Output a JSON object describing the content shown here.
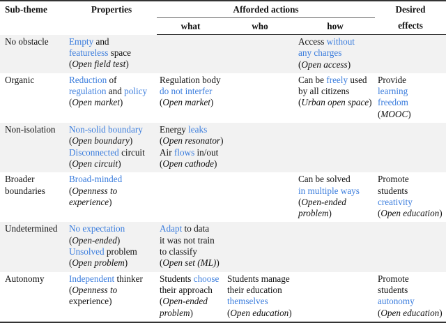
{
  "header": {
    "subtheme": "Sub-theme",
    "properties": "Properties",
    "afforded": "Afforded actions",
    "what": "what",
    "who": "who",
    "how": "how",
    "desired_1": "Desired",
    "desired_2": "effects"
  },
  "colors": {
    "highlight": "#3b7ddd",
    "stripe": "#f2f2f2"
  },
  "rows": [
    {
      "cells": [
        [
          [
            [
              "n",
              "No obstacle"
            ]
          ]
        ],
        [
          [
            [
              "b",
              "Empty"
            ],
            [
              "n",
              " and"
            ]
          ],
          [
            [
              "b",
              "featureless"
            ],
            [
              "n",
              " space"
            ]
          ],
          [
            [
              "n",
              "("
            ],
            [
              "i",
              "Open field test"
            ],
            [
              "n",
              ")"
            ]
          ]
        ],
        [],
        [],
        [
          [
            [
              "n",
              "Access "
            ],
            [
              "b",
              "without"
            ]
          ],
          [
            [
              "b",
              "any charges"
            ]
          ],
          [
            [
              "n",
              "("
            ],
            [
              "i",
              "Open access"
            ],
            [
              "n",
              ")"
            ]
          ]
        ],
        []
      ]
    },
    {
      "cells": [
        [
          [
            [
              "n",
              "Organic"
            ]
          ]
        ],
        [
          [
            [
              "b",
              "Reduction"
            ],
            [
              "n",
              " of"
            ]
          ],
          [
            [
              "b",
              "regulation"
            ],
            [
              "n",
              " and "
            ],
            [
              "b",
              "policy"
            ]
          ],
          [
            [
              "n",
              "("
            ],
            [
              "i",
              "Open market"
            ],
            [
              "n",
              ")"
            ]
          ]
        ],
        [
          [
            [
              "n",
              "Regulation body"
            ]
          ],
          [
            [
              "b",
              "do not interfer"
            ]
          ],
          [
            [
              "n",
              "("
            ],
            [
              "i",
              "Open market"
            ],
            [
              "n",
              ")"
            ]
          ]
        ],
        [],
        [
          [
            [
              "n",
              "Can be "
            ],
            [
              "b",
              "freely"
            ],
            [
              "n",
              " used"
            ]
          ],
          [
            [
              "n",
              "by all citizens"
            ]
          ],
          [
            [
              "n",
              "("
            ],
            [
              "i",
              "Urban open space"
            ],
            [
              "n",
              ")"
            ]
          ]
        ],
        [
          [
            [
              "n",
              "Provide"
            ]
          ],
          [
            [
              "b",
              "learning"
            ]
          ],
          [
            [
              "b",
              "freedom"
            ]
          ],
          [
            [
              "n",
              "("
            ],
            [
              "i",
              "MOOC"
            ],
            [
              "n",
              ")"
            ]
          ]
        ]
      ]
    },
    {
      "cells": [
        [
          [
            [
              "n",
              "Non-isolation"
            ]
          ]
        ],
        [
          [
            [
              "b",
              "Non-solid boundary"
            ]
          ],
          [
            [
              "n",
              "("
            ],
            [
              "i",
              "Open boundary"
            ],
            [
              "n",
              ")"
            ]
          ],
          [
            [
              "b",
              "Disconnected"
            ],
            [
              "n",
              " circuit"
            ]
          ],
          [
            [
              "n",
              "("
            ],
            [
              "i",
              "Open circuit"
            ],
            [
              "n",
              ")"
            ]
          ]
        ],
        [
          [
            [
              "n",
              "Energy "
            ],
            [
              "b",
              "leaks"
            ]
          ],
          [
            [
              "n",
              "("
            ],
            [
              "i",
              "Open resonator"
            ],
            [
              "n",
              ")"
            ]
          ],
          [
            [
              "n",
              "Air "
            ],
            [
              "b",
              "flows"
            ],
            [
              "n",
              " in/out"
            ]
          ],
          [
            [
              "n",
              "("
            ],
            [
              "i",
              "Open cathode"
            ],
            [
              "n",
              ")"
            ]
          ]
        ],
        [],
        [],
        []
      ]
    },
    {
      "cells": [
        [
          [
            [
              "n",
              "Broader"
            ]
          ],
          [
            [
              "n",
              "boundaries"
            ]
          ]
        ],
        [
          [
            [
              "b",
              "Broad-minded"
            ]
          ],
          [
            [
              "n",
              "("
            ],
            [
              "i",
              "Openness to"
            ]
          ],
          [
            [
              "i",
              "experience"
            ],
            [
              "n",
              ")"
            ]
          ]
        ],
        [],
        [],
        [
          [
            [
              "n",
              "Can be solved"
            ]
          ],
          [
            [
              "b",
              "in multiple ways"
            ]
          ],
          [
            [
              "n",
              "("
            ],
            [
              "i",
              "Open-ended"
            ]
          ],
          [
            [
              "i",
              "problem"
            ],
            [
              "n",
              ")"
            ]
          ]
        ],
        [
          [
            [
              "n",
              "Promote"
            ]
          ],
          [
            [
              "n",
              "students"
            ]
          ],
          [
            [
              "b",
              "creativity"
            ]
          ],
          [
            [
              "n",
              "("
            ],
            [
              "i",
              "Open education"
            ],
            [
              "n",
              ")"
            ]
          ]
        ]
      ]
    },
    {
      "cells": [
        [
          [
            [
              "n",
              "Undetermined"
            ]
          ]
        ],
        [
          [
            [
              "b",
              "No expectation"
            ]
          ],
          [
            [
              "n",
              "("
            ],
            [
              "i",
              "Open-ended"
            ],
            [
              "n",
              ")"
            ]
          ],
          [
            [
              "b",
              "Unsolved"
            ],
            [
              "n",
              " problem"
            ]
          ],
          [
            [
              "n",
              "("
            ],
            [
              "i",
              "Open problem"
            ],
            [
              "n",
              ")"
            ]
          ]
        ],
        [
          [
            [
              "b",
              "Adapt"
            ],
            [
              "n",
              " to data"
            ]
          ],
          [
            [
              "n",
              "it was not train"
            ]
          ],
          [
            [
              "n",
              "to classify"
            ]
          ],
          [
            [
              "n",
              "("
            ],
            [
              "i",
              "Open set (ML)"
            ],
            [
              "n",
              ")"
            ]
          ]
        ],
        [],
        [],
        []
      ]
    },
    {
      "cells": [
        [
          [
            [
              "n",
              "Autonomy"
            ]
          ]
        ],
        [
          [
            [
              "b",
              "Independent"
            ],
            [
              "n",
              " thinker"
            ]
          ],
          [
            [
              "n",
              "("
            ],
            [
              "i",
              "Openness to"
            ]
          ],
          [
            [
              "n",
              "experience)"
            ]
          ]
        ],
        [
          [
            [
              "n",
              "Students "
            ],
            [
              "b",
              "choose"
            ]
          ],
          [
            [
              "n",
              "their approach"
            ]
          ],
          [
            [
              "n",
              "("
            ],
            [
              "i",
              "Open-ended"
            ]
          ],
          [
            [
              "i",
              "problem"
            ],
            [
              "n",
              ")"
            ]
          ]
        ],
        [
          [
            [
              "n",
              "Students manage"
            ]
          ],
          [
            [
              "n",
              "their education"
            ]
          ],
          [
            [
              "b",
              "themselves"
            ]
          ],
          [
            [
              "n",
              "("
            ],
            [
              "i",
              "Open education"
            ],
            [
              "n",
              ")"
            ]
          ]
        ],
        [],
        [
          [
            [
              "n",
              "Promote"
            ]
          ],
          [
            [
              "n",
              "students"
            ]
          ],
          [
            [
              "b",
              "autonomy"
            ]
          ],
          [
            [
              "n",
              "("
            ],
            [
              "i",
              "Open education"
            ],
            [
              "n",
              ")"
            ]
          ]
        ]
      ]
    }
  ]
}
